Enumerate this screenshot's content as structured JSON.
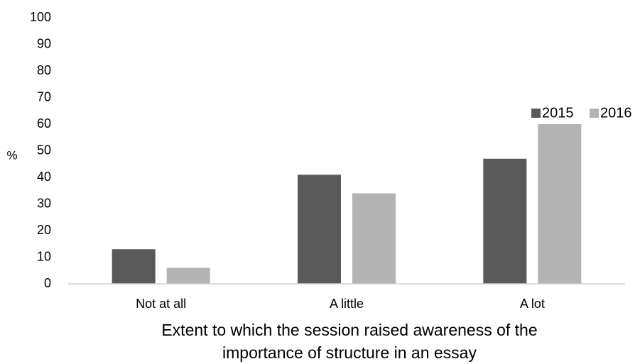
{
  "chart_data": {
    "type": "bar",
    "categories": [
      "Not at all",
      "A little",
      "A lot"
    ],
    "series": [
      {
        "name": "2015",
        "color": "#595959",
        "values": [
          13,
          41,
          47
        ]
      },
      {
        "name": "2016",
        "color": "#b3b3b3",
        "values": [
          6,
          34,
          60
        ]
      }
    ],
    "xlabel_lines": [
      "Extent to which the session raised awareness of the",
      "importance of structure in an essay"
    ],
    "ylabel": "%",
    "ylim": [
      0,
      100
    ],
    "yticks": [
      0,
      10,
      20,
      30,
      40,
      50,
      60,
      70,
      80,
      90,
      100
    ],
    "grid": false,
    "legend": "top-right"
  }
}
